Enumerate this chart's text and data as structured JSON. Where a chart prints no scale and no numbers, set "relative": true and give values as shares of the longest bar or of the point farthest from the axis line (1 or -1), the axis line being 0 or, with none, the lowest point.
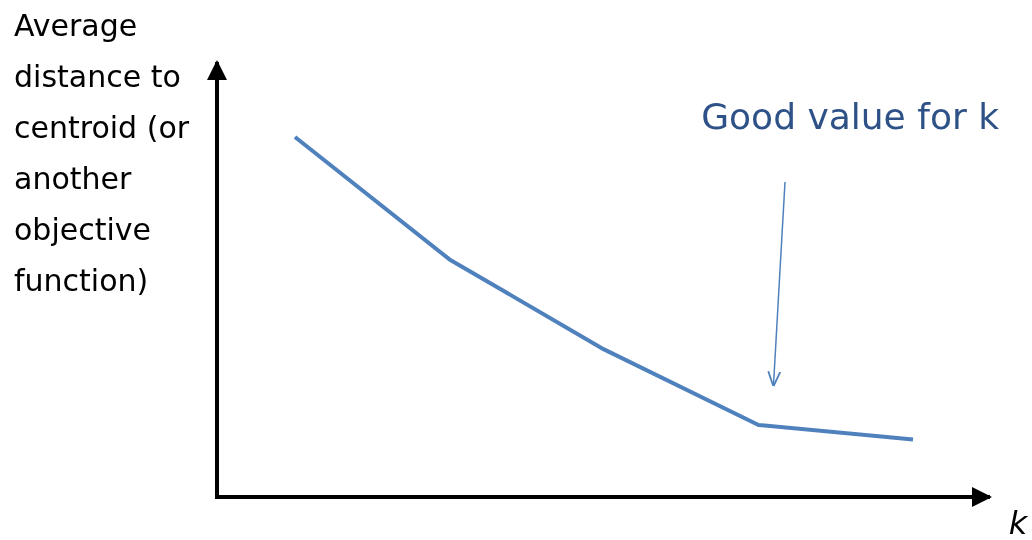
{
  "chart_data": {
    "type": "line",
    "relative": true,
    "categories": [
      null,
      null,
      null,
      null,
      null
    ],
    "series": [
      {
        "color": "#4f81bd",
        "values": [
          1,
          0.66,
          0.41,
          0.2,
          0.16
        ]
      }
    ],
    "ylabel": "Average distance to centroid (or another objective function)",
    "xlabel": "k",
    "annotations": [
      "Good value for k"
    ]
  }
}
